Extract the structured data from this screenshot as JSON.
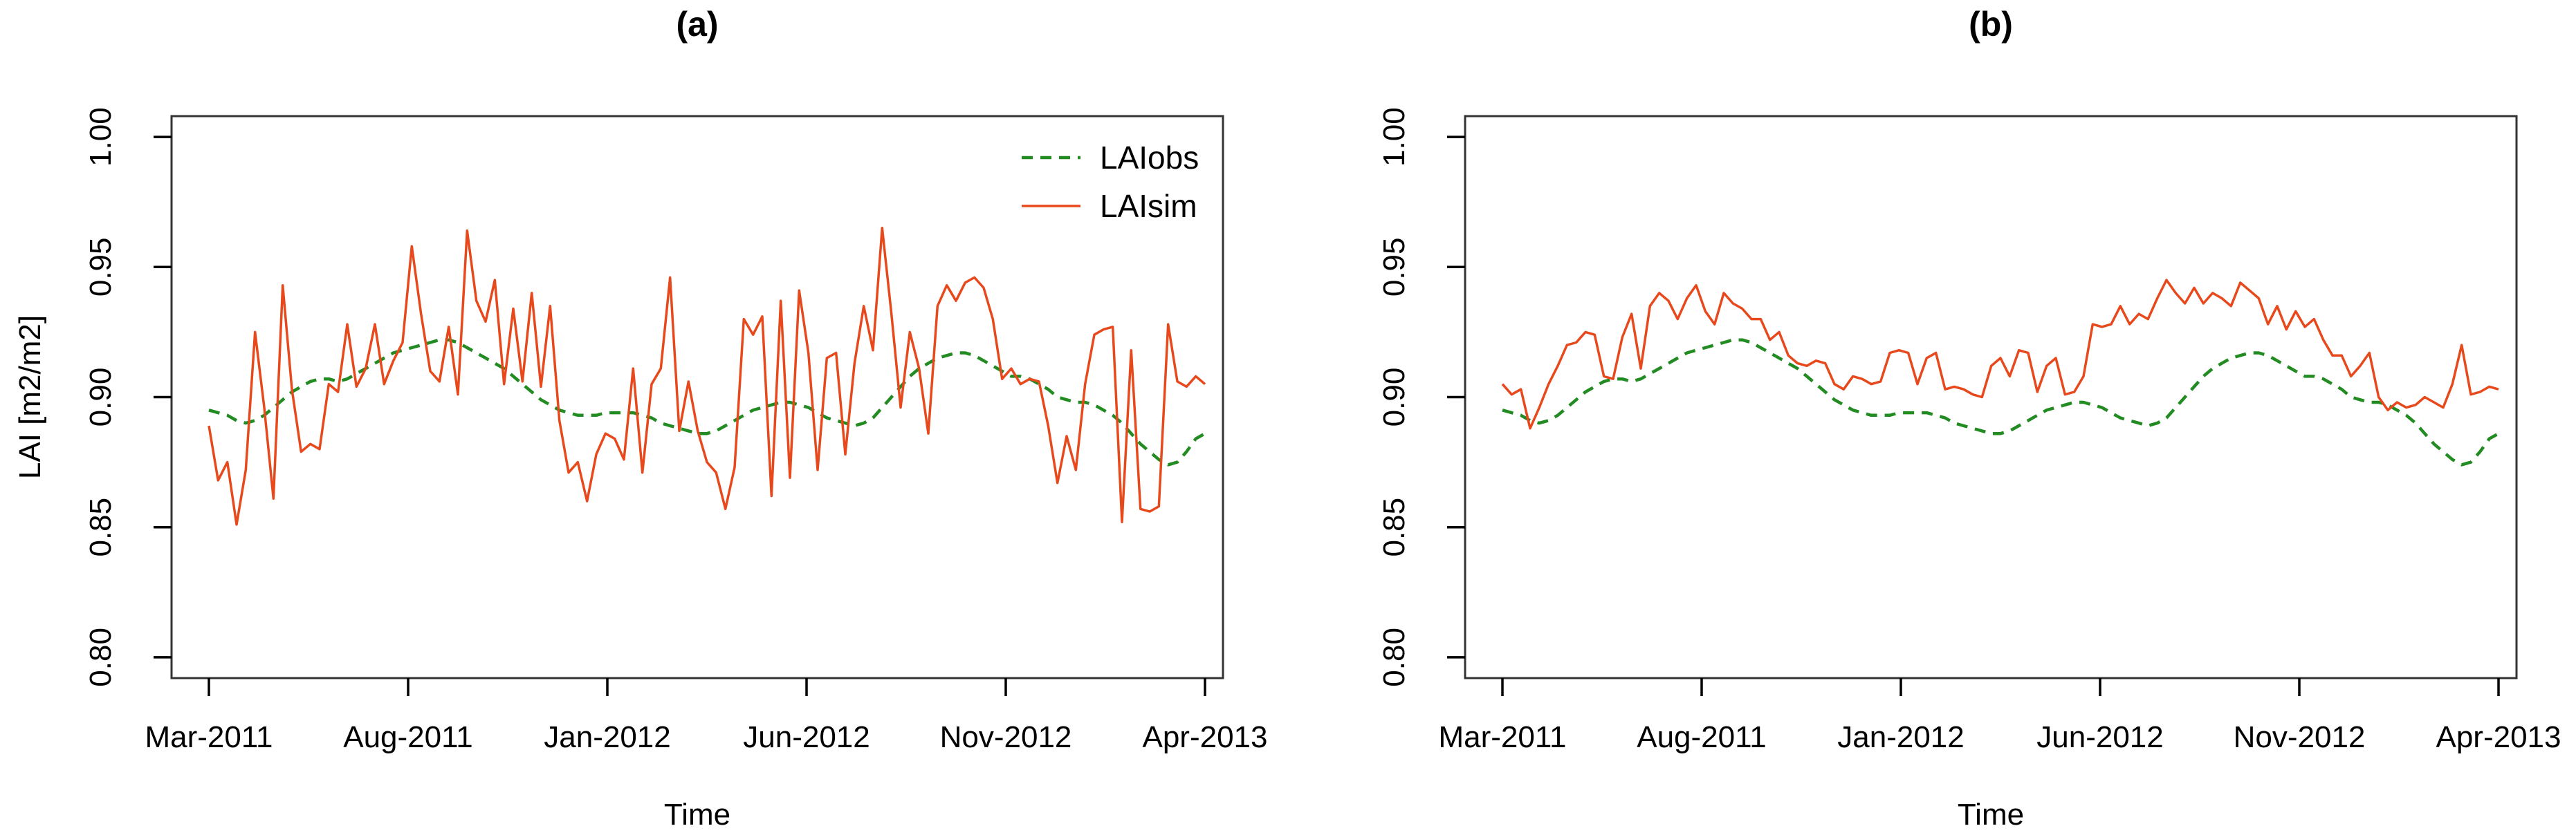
{
  "figure": {
    "background": "#ffffff",
    "panel_titles": [
      "(a)",
      "(b)"
    ],
    "x_axis_title": "Time",
    "y_axis_title": "LAI [m2/m2]",
    "legend_entries": [
      "LAIobs",
      "LAIsim"
    ],
    "legend_panel": "(a)"
  },
  "colors": {
    "obs_green": "#228B22",
    "sim_orange": "#E8491C",
    "frame": "#333333",
    "text": "#000000"
  },
  "chart_data": [
    {
      "type": "line",
      "panel_id": "a",
      "title": "(a)",
      "xlabel": "Time",
      "ylabel": "LAI [m2/m2]",
      "ylim": [
        0.792,
        1.008
      ],
      "yticks": [
        0.8,
        0.85,
        0.9,
        0.95,
        1.0
      ],
      "ytick_labels": [
        "0.80",
        "0.85",
        "0.90",
        "0.95",
        "1.00"
      ],
      "xtick_labels": [
        "Mar-2011",
        "Aug-2011",
        "Jan-2012",
        "Jun-2012",
        "Nov-2012",
        "Apr-2013"
      ],
      "xtick_weeks": [
        0,
        21.6,
        43.2,
        64.8,
        86.4,
        108
      ],
      "x_unit": "weekly time steps from Mar-2011 to Apr-2013",
      "grid": false,
      "legend_position": "topright",
      "frame_color": "#333333",
      "series": [
        {
          "name": "LAIobs",
          "color": "#228B22",
          "style": "dashed",
          "values": [
            0.895,
            0.894,
            0.893,
            0.891,
            0.89,
            0.891,
            0.893,
            0.896,
            0.899,
            0.902,
            0.904,
            0.906,
            0.907,
            0.907,
            0.906,
            0.907,
            0.909,
            0.911,
            0.913,
            0.915,
            0.917,
            0.918,
            0.919,
            0.92,
            0.921,
            0.922,
            0.922,
            0.921,
            0.919,
            0.917,
            0.915,
            0.913,
            0.911,
            0.908,
            0.905,
            0.902,
            0.899,
            0.897,
            0.895,
            0.894,
            0.893,
            0.893,
            0.893,
            0.894,
            0.894,
            0.894,
            0.894,
            0.893,
            0.892,
            0.89,
            0.889,
            0.888,
            0.887,
            0.886,
            0.886,
            0.887,
            0.889,
            0.891,
            0.893,
            0.895,
            0.896,
            0.897,
            0.898,
            0.898,
            0.897,
            0.896,
            0.894,
            0.892,
            0.891,
            0.89,
            0.889,
            0.89,
            0.892,
            0.896,
            0.9,
            0.904,
            0.908,
            0.911,
            0.913,
            0.915,
            0.916,
            0.917,
            0.917,
            0.916,
            0.914,
            0.912,
            0.91,
            0.908,
            0.908,
            0.907,
            0.905,
            0.903,
            0.9,
            0.899,
            0.898,
            0.898,
            0.897,
            0.895,
            0.893,
            0.89,
            0.886,
            0.882,
            0.879,
            0.876,
            0.874,
            0.875,
            0.879,
            0.884,
            0.886
          ]
        },
        {
          "name": "LAIsim",
          "color": "#E8491C",
          "style": "solid",
          "values": [
            0.889,
            0.868,
            0.875,
            0.851,
            0.872,
            0.925,
            0.896,
            0.861,
            0.943,
            0.903,
            0.879,
            0.882,
            0.88,
            0.905,
            0.902,
            0.928,
            0.904,
            0.911,
            0.928,
            0.905,
            0.914,
            0.921,
            0.958,
            0.932,
            0.91,
            0.906,
            0.927,
            0.901,
            0.964,
            0.937,
            0.929,
            0.945,
            0.905,
            0.934,
            0.906,
            0.94,
            0.904,
            0.935,
            0.891,
            0.871,
            0.875,
            0.86,
            0.878,
            0.886,
            0.884,
            0.876,
            0.911,
            0.871,
            0.905,
            0.911,
            0.946,
            0.887,
            0.906,
            0.887,
            0.875,
            0.871,
            0.857,
            0.873,
            0.93,
            0.924,
            0.931,
            0.862,
            0.937,
            0.869,
            0.941,
            0.917,
            0.872,
            0.915,
            0.917,
            0.878,
            0.913,
            0.935,
            0.918,
            0.965,
            0.932,
            0.896,
            0.925,
            0.911,
            0.886,
            0.935,
            0.943,
            0.937,
            0.944,
            0.946,
            0.942,
            0.93,
            0.907,
            0.911,
            0.905,
            0.907,
            0.906,
            0.889,
            0.867,
            0.885,
            0.872,
            0.905,
            0.924,
            0.926,
            0.927,
            0.852,
            0.918,
            0.857,
            0.856,
            0.858,
            0.928,
            0.906,
            0.904,
            0.908,
            0.905
          ]
        }
      ]
    },
    {
      "type": "line",
      "panel_id": "b",
      "title": "(b)",
      "xlabel": "Time",
      "ylabel": "",
      "ylim": [
        0.792,
        1.008
      ],
      "yticks": [
        0.8,
        0.85,
        0.9,
        0.95,
        1.0
      ],
      "ytick_labels": [
        "0.80",
        "0.85",
        "0.90",
        "0.95",
        "1.00"
      ],
      "xtick_labels": [
        "Mar-2011",
        "Aug-2011",
        "Jan-2012",
        "Jun-2012",
        "Nov-2012",
        "Apr-2013"
      ],
      "xtick_weeks": [
        0,
        21.6,
        43.2,
        64.8,
        86.4,
        108
      ],
      "x_unit": "weekly time steps from Mar-2011 to Apr-2013",
      "grid": false,
      "legend_position": "none",
      "frame_color": "#333333",
      "series": [
        {
          "name": "LAIobs",
          "color": "#228B22",
          "style": "dashed",
          "values": [
            0.895,
            0.894,
            0.893,
            0.891,
            0.89,
            0.891,
            0.893,
            0.896,
            0.899,
            0.902,
            0.904,
            0.906,
            0.907,
            0.907,
            0.906,
            0.907,
            0.909,
            0.911,
            0.913,
            0.915,
            0.917,
            0.918,
            0.919,
            0.92,
            0.921,
            0.922,
            0.922,
            0.921,
            0.919,
            0.917,
            0.915,
            0.913,
            0.911,
            0.908,
            0.905,
            0.902,
            0.899,
            0.897,
            0.895,
            0.894,
            0.893,
            0.893,
            0.893,
            0.894,
            0.894,
            0.894,
            0.894,
            0.893,
            0.892,
            0.89,
            0.889,
            0.888,
            0.887,
            0.886,
            0.886,
            0.887,
            0.889,
            0.891,
            0.893,
            0.895,
            0.896,
            0.897,
            0.898,
            0.898,
            0.897,
            0.896,
            0.894,
            0.892,
            0.891,
            0.89,
            0.889,
            0.89,
            0.892,
            0.896,
            0.9,
            0.904,
            0.908,
            0.911,
            0.913,
            0.915,
            0.916,
            0.917,
            0.917,
            0.916,
            0.914,
            0.912,
            0.91,
            0.908,
            0.908,
            0.907,
            0.905,
            0.903,
            0.9,
            0.899,
            0.898,
            0.898,
            0.897,
            0.895,
            0.893,
            0.89,
            0.886,
            0.882,
            0.879,
            0.876,
            0.874,
            0.875,
            0.879,
            0.884,
            0.886
          ]
        },
        {
          "name": "LAIsim",
          "color": "#E8491C",
          "style": "solid",
          "values": [
            0.905,
            0.901,
            0.903,
            0.888,
            0.896,
            0.905,
            0.912,
            0.92,
            0.921,
            0.925,
            0.924,
            0.908,
            0.907,
            0.923,
            0.932,
            0.911,
            0.935,
            0.94,
            0.937,
            0.93,
            0.938,
            0.943,
            0.933,
            0.928,
            0.94,
            0.936,
            0.934,
            0.93,
            0.93,
            0.922,
            0.925,
            0.916,
            0.913,
            0.912,
            0.914,
            0.913,
            0.905,
            0.903,
            0.908,
            0.907,
            0.905,
            0.906,
            0.917,
            0.918,
            0.917,
            0.905,
            0.915,
            0.917,
            0.903,
            0.904,
            0.903,
            0.901,
            0.9,
            0.912,
            0.915,
            0.908,
            0.918,
            0.917,
            0.902,
            0.912,
            0.915,
            0.901,
            0.902,
            0.908,
            0.928,
            0.927,
            0.928,
            0.935,
            0.928,
            0.932,
            0.93,
            0.938,
            0.945,
            0.94,
            0.936,
            0.942,
            0.936,
            0.94,
            0.938,
            0.935,
            0.944,
            0.941,
            0.938,
            0.928,
            0.935,
            0.926,
            0.933,
            0.927,
            0.93,
            0.922,
            0.916,
            0.916,
            0.908,
            0.912,
            0.917,
            0.9,
            0.895,
            0.898,
            0.896,
            0.897,
            0.9,
            0.898,
            0.896,
            0.905,
            0.92,
            0.901,
            0.902,
            0.904,
            0.903
          ]
        }
      ]
    }
  ]
}
